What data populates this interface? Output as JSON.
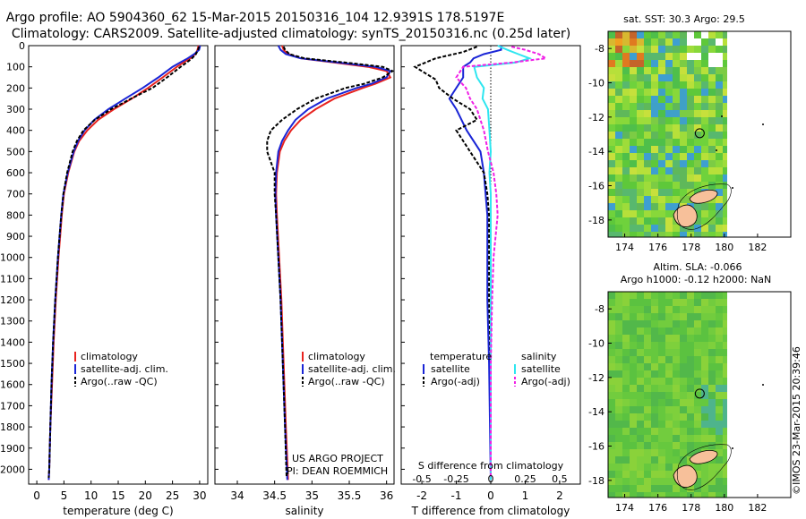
{
  "header": {
    "title_line1": "Argo profile: AO 5904360_62 15-Mar-2015 20150316_104 12.9391S 178.5197E",
    "title_line2": "Climatology: CARS2009. Satellite-adjusted climatology: synTS_20150316.nc (0.25d later)"
  },
  "credit": "©IMOS 23-Mar-2015 20:39:46",
  "depth_ticks": [
    0,
    100,
    200,
    300,
    400,
    500,
    600,
    700,
    800,
    900,
    1000,
    1100,
    1200,
    1300,
    1400,
    1500,
    1600,
    1700,
    1800,
    1900,
    2000
  ],
  "colors": {
    "climatology": "#e8231f",
    "satellite": "#1a25d6",
    "argo": "#000000",
    "sat_salinity": "#2ee6f0",
    "argo_salinity_adj": "#f020e6"
  },
  "chart_data": [
    {
      "type": "line",
      "id": "temperature",
      "xlabel": "temperature (deg C)",
      "xlim": [
        -1.5,
        31.5
      ],
      "ylim": [
        2070,
        0
      ],
      "xticks": [
        0,
        5,
        10,
        15,
        20,
        25,
        30
      ],
      "legend": [
        "climatology",
        "satellite-adj. clim.",
        "Argo(..raw -QC)"
      ],
      "legend_position": "lower-center",
      "series": [
        {
          "name": "climatology",
          "color": "#e8231f",
          "depth": [
            0,
            20,
            40,
            60,
            80,
            100,
            150,
            200,
            250,
            300,
            350,
            400,
            450,
            500,
            600,
            700,
            800,
            900,
            1000,
            1200,
            1400,
            1600,
            1800,
            2000,
            2050
          ],
          "values": [
            29.8,
            29.6,
            29.2,
            28.3,
            27.0,
            25.8,
            23.2,
            20.5,
            17.5,
            14.2,
            11.3,
            9.3,
            7.8,
            6.9,
            5.8,
            5.0,
            4.6,
            4.3,
            4.0,
            3.5,
            3.1,
            2.8,
            2.5,
            2.3,
            2.2
          ]
        },
        {
          "name": "satellite-adj. clim.",
          "color": "#1a25d6",
          "depth": [
            0,
            20,
            40,
            60,
            80,
            100,
            150,
            200,
            250,
            300,
            350,
            400,
            450,
            500,
            600,
            700,
            800,
            900,
            1000,
            1200,
            1400,
            1600,
            1800,
            2000,
            2050
          ],
          "values": [
            30.1,
            29.9,
            29.0,
            27.8,
            26.4,
            25.0,
            22.4,
            19.5,
            16.3,
            13.2,
            10.6,
            8.8,
            7.6,
            6.8,
            5.7,
            4.9,
            4.5,
            4.2,
            3.9,
            3.4,
            3.0,
            2.7,
            2.5,
            2.3,
            2.2
          ]
        },
        {
          "name": "Argo(..raw -QC)",
          "color": "#000000",
          "dashed": true,
          "depth": [
            5,
            20,
            40,
            60,
            80,
            100,
            150,
            200,
            250,
            300,
            350,
            400,
            450,
            500,
            600,
            700,
            800,
            900,
            1000,
            1200,
            1400,
            1600,
            1800,
            2000,
            2040
          ],
          "values": [
            29.9,
            29.7,
            29.3,
            28.6,
            27.6,
            26.5,
            24.0,
            21.3,
            17.4,
            13.7,
            10.7,
            8.6,
            7.4,
            6.6,
            5.6,
            4.9,
            4.5,
            4.2,
            3.9,
            3.4,
            3.0,
            2.7,
            2.5,
            2.3,
            2.2
          ]
        }
      ]
    },
    {
      "type": "line",
      "id": "salinity",
      "xlabel": "salinity",
      "xlim": [
        33.7,
        36.1
      ],
      "ylim": [
        2070,
        0
      ],
      "xticks": [
        34,
        34.5,
        35,
        35.5,
        36
      ],
      "legend": [
        "climatology",
        "satellite-adj. clim.",
        "Argo(..raw -QC)"
      ],
      "legend_position": "lower-center",
      "annotation": [
        "US ARGO PROJECT",
        "PI: DEAN ROEMMICH"
      ],
      "series": [
        {
          "name": "climatology",
          "color": "#e8231f",
          "depth": [
            0,
            20,
            40,
            60,
            80,
            100,
            120,
            150,
            180,
            200,
            250,
            300,
            350,
            400,
            450,
            500,
            600,
            700,
            800,
            1000,
            1200,
            1500,
            1800,
            2050
          ],
          "values": [
            34.6,
            34.62,
            34.68,
            34.85,
            35.3,
            35.75,
            36.0,
            36.05,
            35.85,
            35.68,
            35.3,
            35.05,
            34.85,
            34.72,
            34.63,
            34.57,
            34.53,
            34.52,
            34.53,
            34.56,
            34.59,
            34.62,
            34.65,
            34.68
          ]
        },
        {
          "name": "satellite-adj. clim.",
          "color": "#1a25d6",
          "depth": [
            0,
            20,
            40,
            60,
            80,
            100,
            120,
            150,
            180,
            200,
            250,
            300,
            350,
            400,
            450,
            500,
            600,
            700,
            800,
            1000,
            1200,
            1500,
            1800,
            2050
          ],
          "values": [
            34.55,
            34.58,
            34.65,
            34.85,
            35.35,
            35.85,
            36.05,
            36.0,
            35.8,
            35.6,
            35.2,
            34.95,
            34.78,
            34.68,
            34.6,
            34.55,
            34.52,
            34.51,
            34.52,
            34.55,
            34.58,
            34.61,
            34.64,
            34.67
          ]
        },
        {
          "name": "Argo(..raw -QC)",
          "color": "#000000",
          "dashed": true,
          "depth": [
            5,
            20,
            40,
            60,
            80,
            100,
            120,
            150,
            180,
            200,
            250,
            300,
            350,
            400,
            450,
            500,
            550,
            600,
            700,
            800,
            1000,
            1200,
            1500,
            1800,
            2040
          ],
          "values": [
            34.62,
            34.64,
            34.7,
            34.9,
            35.45,
            35.95,
            36.08,
            35.95,
            35.7,
            35.45,
            35.05,
            34.8,
            34.6,
            34.45,
            34.4,
            34.4,
            34.45,
            34.5,
            34.5,
            34.52,
            34.55,
            34.58,
            34.61,
            34.64,
            34.66
          ]
        }
      ]
    },
    {
      "type": "line",
      "id": "difference",
      "xlabel": "T difference from climatology",
      "top_xlabel": "S difference from climatology",
      "xlim": [
        -2.6,
        2.6
      ],
      "ylim": [
        2070,
        0
      ],
      "xticks": [
        -2,
        -1,
        0,
        1,
        2
      ],
      "top_ticks": [
        "-0.5",
        "-0.25",
        "0",
        "0.25",
        "0.5"
      ],
      "legend_headers": [
        "temperature",
        "salinity"
      ],
      "legend": [
        "satellite",
        "Argo(-adj)",
        "satellite",
        "Argo(-adj)"
      ],
      "series": [
        {
          "name": "temperature satellite",
          "color": "#1a25d6",
          "depth": [
            0,
            20,
            40,
            60,
            80,
            100,
            150,
            200,
            250,
            300,
            400,
            500,
            600,
            700,
            800,
            1000,
            1200,
            1500,
            2050
          ],
          "values": [
            0.3,
            0.3,
            -0.2,
            -0.5,
            -0.6,
            -0.8,
            -0.8,
            -1.0,
            -1.2,
            -1.0,
            -0.7,
            -0.3,
            -0.2,
            -0.15,
            -0.1,
            -0.1,
            -0.1,
            -0.05,
            0.0
          ]
        },
        {
          "name": "temperature Argo(-adj)",
          "color": "#000000",
          "dashed": true,
          "depth": [
            5,
            30,
            60,
            100,
            130,
            160,
            200,
            250,
            300,
            350,
            400,
            450,
            500,
            550,
            600,
            700,
            800,
            1000,
            1200,
            1500,
            2040
          ],
          "values": [
            -0.4,
            -0.8,
            -1.6,
            -2.2,
            -1.9,
            -1.6,
            -1.5,
            -1.1,
            -0.6,
            -0.4,
            -1.0,
            -0.8,
            -0.6,
            -0.4,
            -0.2,
            -0.1,
            -0.05,
            -0.05,
            -0.05,
            0.0,
            0.0
          ]
        },
        {
          "name": "salinity satellite",
          "color": "#2ee6f0",
          "depth": [
            0,
            20,
            40,
            60,
            80,
            100,
            150,
            200,
            250,
            300,
            400,
            500,
            600,
            700,
            800,
            1000,
            1200,
            1500,
            2050
          ],
          "values": [
            0.05,
            0.12,
            0.2,
            0.28,
            0.18,
            -0.12,
            -0.1,
            -0.05,
            -0.06,
            -0.02,
            -0.01,
            0.0,
            -0.01,
            0.0,
            0.0,
            0.0,
            0.0,
            0.0,
            0.0
          ]
        },
        {
          "name": "salinity Argo(-adj)",
          "color": "#f020e6",
          "dashed": true,
          "depth": [
            5,
            20,
            40,
            60,
            80,
            100,
            150,
            200,
            250,
            300,
            400,
            500,
            600,
            700,
            800,
            1000,
            1200,
            1500,
            2040
          ],
          "values": [
            0.15,
            0.25,
            0.35,
            0.4,
            0.15,
            -0.2,
            -0.25,
            -0.18,
            -0.15,
            -0.1,
            -0.05,
            -0.02,
            0.02,
            0.04,
            0.05,
            0.02,
            0.01,
            0.0,
            0.0
          ]
        }
      ]
    },
    {
      "type": "heatmap",
      "id": "sst_map",
      "title": "sat. SST: 30.3  Argo: 29.5",
      "xlim": [
        173,
        184
      ],
      "ylim": [
        -19,
        -7
      ],
      "xticks": [
        174,
        176,
        178,
        180,
        182
      ],
      "yticks": [
        -8,
        -10,
        -12,
        -14,
        -16,
        -18
      ],
      "marker": {
        "lon": 178.52,
        "lat": -12.94
      }
    },
    {
      "type": "heatmap",
      "id": "sla_map",
      "title_line1": "Altim. SLA: -0.066",
      "title_line2": "Argo h1000: -0.12 h2000: NaN",
      "xlim": [
        173,
        184
      ],
      "ylim": [
        -19,
        -7
      ],
      "xticks": [
        174,
        176,
        178,
        180,
        182
      ],
      "yticks": [
        -8,
        -10,
        -12,
        -14,
        -16,
        -18
      ],
      "marker": {
        "lon": 178.52,
        "lat": -12.94
      }
    }
  ]
}
